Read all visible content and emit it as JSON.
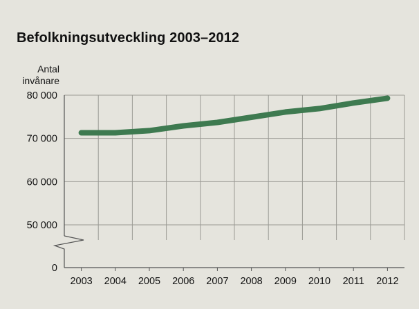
{
  "chart_data": {
    "type": "line",
    "title": "Befolkningsutveckling 2003–2012",
    "ylabel_line1": "Antal",
    "ylabel_line2": "invånare",
    "xlabel": "",
    "categories": [
      "2003",
      "2004",
      "2005",
      "2006",
      "2007",
      "2008",
      "2009",
      "2010",
      "2011",
      "2012"
    ],
    "y_tick_labels": [
      "0",
      "50 000",
      "60 000",
      "70 000",
      "80 000"
    ],
    "y_ticks": [
      0,
      50000,
      60000,
      70000,
      80000
    ],
    "ylim": [
      0,
      80000
    ],
    "axis_break": true,
    "grid": true,
    "series": [
      {
        "values": [
          71300,
          71300,
          71800,
          72900,
          73700,
          74900,
          76100,
          76900,
          78200,
          79300
        ]
      }
    ],
    "colors": {
      "line": "#3e7a50",
      "grid": "#9a9a94",
      "plot_background": "#e5e4dd",
      "page_background": "#e5e4dd"
    }
  }
}
